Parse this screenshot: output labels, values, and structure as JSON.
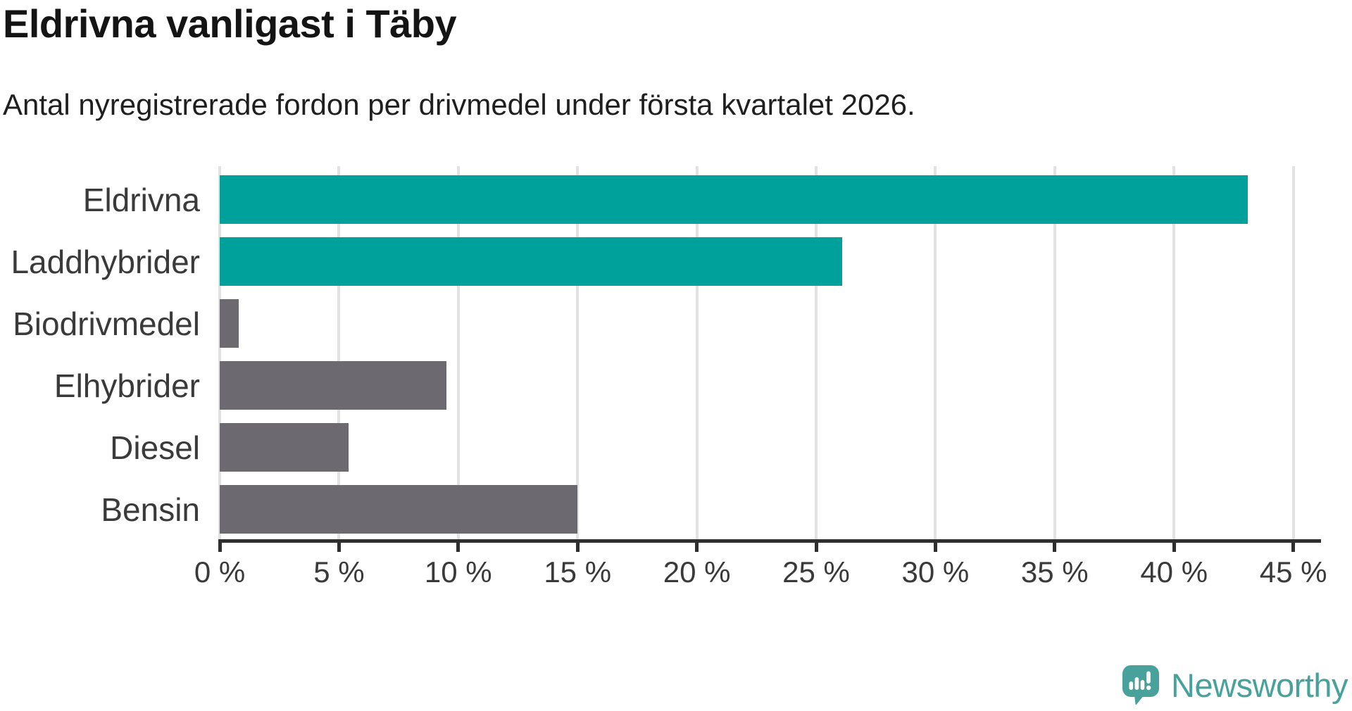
{
  "header": {
    "title": "Eldrivna vanligast i Täby",
    "subtitle": "Antal nyregistrerade fordon per drivmedel under första kvartalet 2026."
  },
  "chart_data": {
    "type": "bar",
    "orientation": "horizontal",
    "title": "Eldrivna vanligast i Täby",
    "xlabel": "",
    "ylabel": "",
    "categories": [
      "Eldrivna",
      "Laddhybrider",
      "Biodrivmedel",
      "Elhybrider",
      "Diesel",
      "Bensin"
    ],
    "values": [
      43.1,
      26.1,
      0.8,
      9.5,
      5.4,
      15.0
    ],
    "unit": "%",
    "bar_colors": [
      "#00a09b",
      "#00a09b",
      "#6c6970",
      "#6c6970",
      "#6c6970",
      "#6c6970"
    ],
    "xlim": [
      0,
      46.2
    ],
    "x_ticks": [
      0,
      5,
      10,
      15,
      20,
      25,
      30,
      35,
      40,
      45
    ],
    "x_tick_labels": [
      "0 %",
      "5 %",
      "10 %",
      "15 %",
      "20 %",
      "25 %",
      "30 %",
      "35 %",
      "40 %",
      "45 %"
    ],
    "grid": true,
    "legend": "none"
  },
  "colors": {
    "teal_bar": "#00a09b",
    "gray_bar": "#6c6970",
    "gridline": "#e2e2e2",
    "axis": "#2f2f2f",
    "label_text": "#3a3a3a",
    "brand_teal": "#48a29b"
  },
  "branding": {
    "name": "Newsworthy",
    "icon": "newsworthy-speech-bubble-chart-icon"
  }
}
